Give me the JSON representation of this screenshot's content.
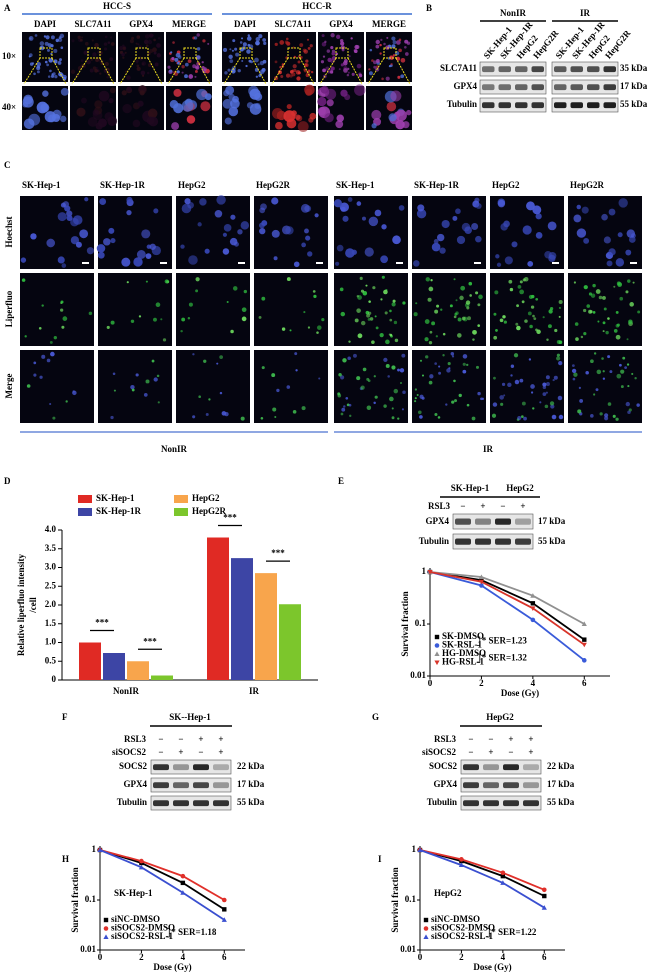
{
  "panel_A": {
    "label": "A",
    "groups": [
      {
        "title": "HCC-S",
        "channels": [
          "DAPI",
          "SLC7A11",
          "GPX4",
          "MERGE"
        ]
      },
      {
        "title": "HCC-R",
        "channels": [
          "DAPI",
          "SLC7A11",
          "GPX4",
          "MERGE"
        ]
      }
    ],
    "magnifications": [
      "10×",
      "40×"
    ]
  },
  "panel_B": {
    "label": "B",
    "conditions": [
      "NonIR",
      "IR"
    ],
    "lanes": [
      "SK-Hep-1",
      "SK-Hep-1R",
      "HepG2",
      "HepG2R"
    ],
    "proteins": [
      "SLC7A11",
      "GPX4",
      "Tubulin"
    ],
    "sizes": [
      "35 kDa",
      "17 kDa",
      "55 kDa"
    ]
  },
  "panel_C": {
    "label": "C",
    "cells": [
      "SK-Hep-1",
      "SK-Hep-1R",
      "HepG2",
      "HepG2R"
    ],
    "stains": [
      "Hoechst",
      "Liperfluo",
      "Merge"
    ],
    "conditions": [
      "NonIR",
      "IR"
    ]
  },
  "panel_E_blot": {
    "cells": [
      "SK-Hep-1",
      "HepG2"
    ],
    "treatment": "RSL3",
    "signs": [
      "−",
      "+",
      "−",
      "+"
    ],
    "proteins": [
      "GPX4",
      "Tubulin"
    ],
    "sizes": [
      "17 kDa",
      "55 kDa"
    ]
  },
  "panel_F": {
    "label": "F",
    "title": "SK--Hep-1",
    "treatments": [
      {
        "name": "RSL3",
        "signs": [
          "−",
          "−",
          "+",
          "+"
        ]
      },
      {
        "name": "siSOCS2",
        "signs": [
          "−",
          "+",
          "−",
          "+"
        ]
      }
    ],
    "proteins": [
      "SOCS2",
      "GPX4",
      "Tubulin"
    ],
    "sizes": [
      "22 kDa",
      "17 kDa",
      "55 kDa"
    ]
  },
  "panel_G": {
    "label": "G",
    "title": "HepG2",
    "treatments": [
      {
        "name": "RSL3",
        "signs": [
          "−",
          "−",
          "+",
          "+"
        ]
      },
      {
        "name": "siSOCS2",
        "signs": [
          "−",
          "+",
          "−",
          "+"
        ]
      }
    ],
    "proteins": [
      "SOCS2",
      "GPX4",
      "Tubulin"
    ],
    "sizes": [
      "22 kDa",
      "17 kDa",
      "55 kDa"
    ]
  },
  "chart_data": [
    {
      "label": "D",
      "type": "bar",
      "y_label": [
        "Relative liperfluo intensity",
        "/cell"
      ],
      "categories": [
        "NonIR",
        "IR"
      ],
      "series": [
        {
          "name": "SK-Hep-1",
          "color": "#e02a24",
          "values": [
            1.0,
            3.8
          ]
        },
        {
          "name": "SK-Hep-1R",
          "color": "#3d45a5",
          "values": [
            0.72,
            3.25
          ]
        },
        {
          "name": "HepG2",
          "color": "#f8a54c",
          "values": [
            0.5,
            2.85
          ]
        },
        {
          "name": "HepG2R",
          "color": "#7cc62c",
          "values": [
            0.12,
            2.02
          ]
        }
      ],
      "ylim": [
        0,
        4
      ],
      "yticks": [
        0,
        0.5,
        {
          "value": 1,
          "label": "1.0"
        },
        1.5,
        {
          "value": 2,
          "label": "2.0"
        },
        2.5,
        {
          "value": 3,
          "label": "3.0"
        },
        3.5,
        {
          "value": 4,
          "label": "4.0"
        }
      ],
      "annotations": [
        "***",
        "***",
        "***",
        "***"
      ]
    },
    {
      "label": "E",
      "type": "line",
      "log_y": true,
      "x_label": "Dose (Gy)",
      "y_label": "Survival fraction",
      "x": [
        0,
        2,
        4,
        6
      ],
      "xlim": [
        0,
        7
      ],
      "xticks": [
        0,
        2,
        4,
        6
      ],
      "ylim": [
        0.01,
        1
      ],
      "yticks": [
        0.01,
        0.1,
        1
      ],
      "series": [
        {
          "name": "SK-DMSO",
          "color": "#000000",
          "marker": "square",
          "values": [
            1,
            0.7,
            0.25,
            0.05
          ]
        },
        {
          "name": "SK-RSL-1",
          "color": "#3a5bd9",
          "marker": "circle",
          "values": [
            1,
            0.55,
            0.12,
            0.02
          ]
        },
        {
          "name": "HG-DMSO",
          "color": "#909090",
          "marker": "triangle",
          "values": [
            1,
            0.8,
            0.35,
            0.1
          ]
        },
        {
          "name": "HG-RSL-1",
          "color": "#d8342a",
          "marker": "down",
          "values": [
            1,
            0.65,
            0.2,
            0.04
          ]
        }
      ],
      "annotations": [
        "* SER=1.23",
        "* SER=1.32"
      ]
    },
    {
      "label": "H",
      "type": "line",
      "log_y": true,
      "x_label": "Dose (Gy)",
      "y_label": "Survival fraction",
      "cell_line": "SK-Hep-1",
      "x": [
        0,
        2,
        4,
        6
      ],
      "xlim": [
        0,
        7
      ],
      "xticks": [
        0,
        2,
        4,
        6
      ],
      "ylim": [
        0.01,
        1
      ],
      "yticks": [
        0.01,
        0.1,
        1
      ],
      "series": [
        {
          "name": "siNC-DMSO",
          "color": "#000000",
          "marker": "square",
          "values": [
            1,
            0.55,
            0.22,
            0.065
          ]
        },
        {
          "name": "siSOCS2-DMSO",
          "color": "#e0302a",
          "marker": "circle",
          "values": [
            1,
            0.6,
            0.3,
            0.1
          ]
        },
        {
          "name": "siSOCS2-RSL-1",
          "color": "#3a4fd0",
          "marker": "triangle",
          "values": [
            1,
            0.45,
            0.14,
            0.04
          ]
        }
      ],
      "annotations": [
        "* SER=1.18"
      ]
    },
    {
      "label": "I",
      "type": "line",
      "log_y": true,
      "x_label": "Dose (Gy)",
      "y_label": "Survival fraction",
      "cell_line": "HepG2",
      "x": [
        0,
        2,
        4,
        6
      ],
      "xlim": [
        0,
        7
      ],
      "xticks": [
        0,
        2,
        4,
        6
      ],
      "ylim": [
        0.01,
        1
      ],
      "yticks": [
        0.01,
        0.1,
        1
      ],
      "series": [
        {
          "name": "siNC-DMSO",
          "color": "#000000",
          "marker": "square",
          "values": [
            1,
            0.6,
            0.3,
            0.12
          ]
        },
        {
          "name": "siSOCS2-DMSO",
          "color": "#e0302a",
          "marker": "circle",
          "values": [
            1,
            0.65,
            0.35,
            0.16
          ]
        },
        {
          "name": "siSOCS2-RSL-1",
          "color": "#3a4fd0",
          "marker": "triangle",
          "values": [
            1,
            0.5,
            0.22,
            0.07
          ]
        }
      ],
      "annotations": [
        "* SER=1.22"
      ]
    }
  ]
}
